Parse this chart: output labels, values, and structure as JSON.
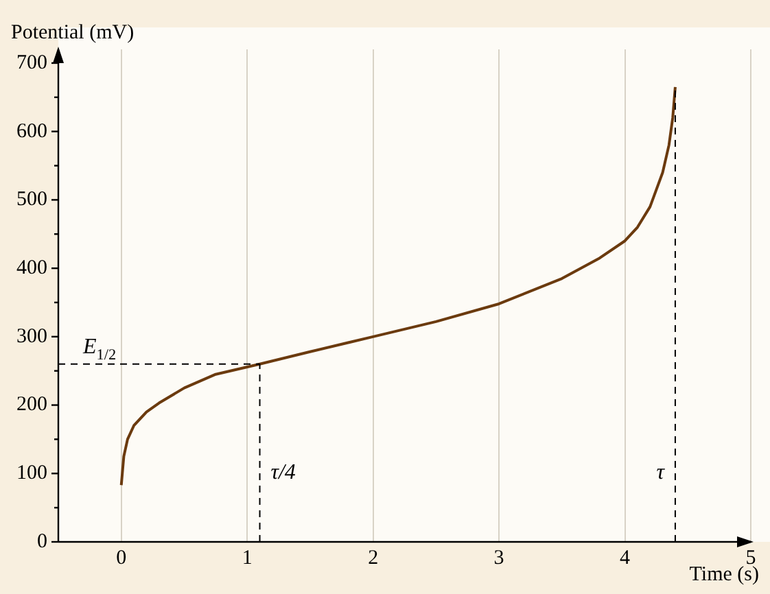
{
  "chart_data": {
    "type": "line",
    "xlabel": "Time (s)",
    "ylabel": "Potential (mV)",
    "xlim": [
      -0.5,
      5
    ],
    "xticks": [
      0,
      1,
      2,
      3,
      4,
      5
    ],
    "ylim": [
      0,
      720
    ],
    "yticks": [
      0,
      {
        "value": 50,
        "label": null
      },
      100,
      {
        "value": 150,
        "label": null
      },
      200,
      {
        "value": 250,
        "label": null
      },
      300,
      {
        "value": 350,
        "label": null
      },
      400,
      {
        "value": 450,
        "label": null
      },
      500,
      {
        "value": 550,
        "label": null
      },
      600,
      {
        "value": 650,
        "label": null
      },
      700
    ],
    "grid": "x",
    "marker": "none",
    "line_style": "solid",
    "series": [
      {
        "color": "#6b3a0e",
        "x": [
          0,
          0.02,
          0.05,
          0.1,
          0.2,
          0.3,
          0.5,
          0.75,
          1.1,
          1.5,
          2,
          2.5,
          3,
          3.5,
          3.8,
          4,
          4.1,
          4.2,
          4.3,
          4.35,
          4.38,
          4.4
        ],
        "values": [
          83,
          125,
          150,
          170,
          190,
          203,
          225,
          245,
          260,
          278,
          300,
          322,
          348,
          385,
          415,
          440,
          460,
          490,
          540,
          580,
          620,
          665
        ]
      }
    ],
    "ref_lines": [
      {
        "axis": "y",
        "value": 260,
        "label": "E$_{1/2}$",
        "line_style": "dashed"
      },
      {
        "axis": "x",
        "value": 1.1,
        "label": "τ/4",
        "line_style": "dashed"
      },
      {
        "axis": "x",
        "value": 4.4,
        "label": "τ",
        "line_style": "dashed"
      }
    ]
  }
}
